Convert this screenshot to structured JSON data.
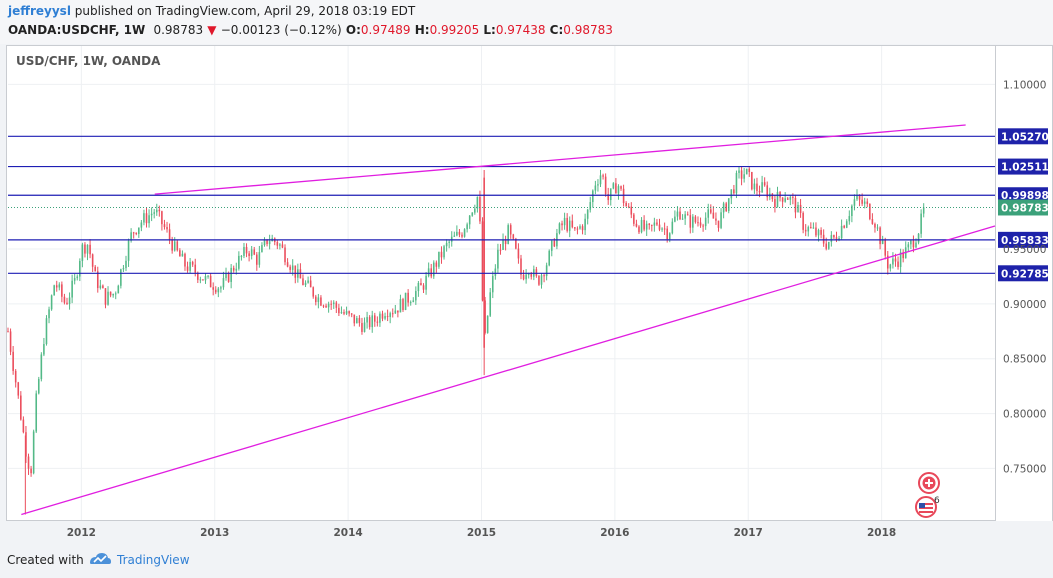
{
  "header": {
    "author": "jeffreyysl",
    "published_text": "published on TradingView.com, April 29, 2018 03:19 EDT",
    "symbol": "OANDA:USDCHF, 1W",
    "last": "0.98783",
    "change_arrow": "▼",
    "change": "−0.00123 (−0.12%)",
    "open_label": "O:",
    "open": "0.97489",
    "high_label": "H:",
    "high": "0.99205",
    "low_label": "L:",
    "low": "0.97438",
    "close_label": "C:",
    "close": "0.98783"
  },
  "footer": {
    "created_with": "Created with",
    "brand": "TradingView"
  },
  "chart_data": {
    "type": "candlestick",
    "title": "USD/CHF, 1W, OANDA",
    "colors": {
      "up": "#53b987",
      "down": "#eb4d5c",
      "level_line": "#1e1eb4",
      "trend_line": "#e01ee0",
      "current_line": "#3ba17a"
    },
    "xlim": [
      2011.45,
      2018.85
    ],
    "ylim": [
      0.703,
      1.135
    ],
    "x_ticks": [
      {
        "x": 2012,
        "label": "2012"
      },
      {
        "x": 2013,
        "label": "2013"
      },
      {
        "x": 2014,
        "label": "2014"
      },
      {
        "x": 2015,
        "label": "2015"
      },
      {
        "x": 2016,
        "label": "2016"
      },
      {
        "x": 2017,
        "label": "2017"
      },
      {
        "x": 2018,
        "label": "2018"
      }
    ],
    "y_ticks": [
      {
        "y": 0.75,
        "label": "0.75000"
      },
      {
        "y": 0.8,
        "label": "0.80000"
      },
      {
        "y": 0.85,
        "label": "0.85000"
      },
      {
        "y": 0.9,
        "label": "0.90000"
      },
      {
        "y": 0.95,
        "label": "0.95000"
      },
      {
        "y": 1.1,
        "label": "1.10000"
      }
    ],
    "levels": [
      {
        "value": 1.0527,
        "label": "1.05270"
      },
      {
        "value": 1.02511,
        "label": "1.02511"
      },
      {
        "value": 0.99898,
        "label": "0.99898"
      },
      {
        "value": 0.95833,
        "label": "0.95833"
      },
      {
        "value": 0.92785,
        "label": "0.92785"
      }
    ],
    "current": {
      "value": 0.98783,
      "label": "0.98783"
    },
    "trendlines": [
      {
        "x1": 2012.55,
        "y1": 1.0,
        "x2": 2018.63,
        "y2": 1.063
      },
      {
        "x1": 2011.55,
        "y1": 0.708,
        "x2": 2018.85,
        "y2": 0.971
      }
    ],
    "anchors": [
      [
        2011.45,
        0.875
      ],
      [
        2011.52,
        0.82
      ],
      [
        2011.58,
        0.77
      ],
      [
        2011.62,
        0.745
      ],
      [
        2011.66,
        0.81
      ],
      [
        2011.72,
        0.87
      ],
      [
        2011.8,
        0.92
      ],
      [
        2011.88,
        0.9
      ],
      [
        2011.95,
        0.92
      ],
      [
        2012.0,
        0.95
      ],
      [
        2012.05,
        0.955
      ],
      [
        2012.1,
        0.925
      ],
      [
        2012.18,
        0.905
      ],
      [
        2012.25,
        0.91
      ],
      [
        2012.32,
        0.94
      ],
      [
        2012.38,
        0.965
      ],
      [
        2012.45,
        0.975
      ],
      [
        2012.55,
        0.985
      ],
      [
        2012.62,
        0.97
      ],
      [
        2012.7,
        0.95
      ],
      [
        2012.78,
        0.935
      ],
      [
        2012.85,
        0.93
      ],
      [
        2012.95,
        0.92
      ],
      [
        2013.05,
        0.915
      ],
      [
        2013.15,
        0.935
      ],
      [
        2013.25,
        0.95
      ],
      [
        2013.32,
        0.94
      ],
      [
        2013.4,
        0.96
      ],
      [
        2013.48,
        0.955
      ],
      [
        2013.55,
        0.94
      ],
      [
        2013.62,
        0.925
      ],
      [
        2013.7,
        0.915
      ],
      [
        2013.78,
        0.905
      ],
      [
        2013.88,
        0.9
      ],
      [
        2013.98,
        0.89
      ],
      [
        2014.05,
        0.885
      ],
      [
        2014.12,
        0.88
      ],
      [
        2014.2,
        0.885
      ],
      [
        2014.28,
        0.895
      ],
      [
        2014.35,
        0.895
      ],
      [
        2014.45,
        0.905
      ],
      [
        2014.55,
        0.915
      ],
      [
        2014.65,
        0.935
      ],
      [
        2014.75,
        0.955
      ],
      [
        2014.85,
        0.965
      ],
      [
        2014.92,
        0.985
      ],
      [
        2014.98,
        1.0
      ],
      [
        2015.02,
        0.86
      ],
      [
        2015.06,
        0.905
      ],
      [
        2015.12,
        0.945
      ],
      [
        2015.2,
        0.965
      ],
      [
        2015.25,
        0.95
      ],
      [
        2015.3,
        0.925
      ],
      [
        2015.35,
        0.935
      ],
      [
        2015.42,
        0.92
      ],
      [
        2015.5,
        0.94
      ],
      [
        2015.55,
        0.96
      ],
      [
        2015.62,
        0.975
      ],
      [
        2015.7,
        0.965
      ],
      [
        2015.78,
        0.975
      ],
      [
        2015.85,
        1.01
      ],
      [
        2015.9,
        1.02
      ],
      [
        2015.95,
        0.995
      ],
      [
        2016.02,
        1.01
      ],
      [
        2016.08,
        0.99
      ],
      [
        2016.15,
        0.975
      ],
      [
        2016.25,
        0.965
      ],
      [
        2016.32,
        0.975
      ],
      [
        2016.4,
        0.965
      ],
      [
        2016.48,
        0.985
      ],
      [
        2016.55,
        0.975
      ],
      [
        2016.62,
        0.975
      ],
      [
        2016.7,
        0.98
      ],
      [
        2016.78,
        0.975
      ],
      [
        2016.85,
        0.995
      ],
      [
        2016.92,
        1.015
      ],
      [
        2016.98,
        1.02
      ],
      [
        2017.05,
        1.005
      ],
      [
        2017.12,
        1.005
      ],
      [
        2017.2,
        0.995
      ],
      [
        2017.28,
        1.0
      ],
      [
        2017.35,
        0.99
      ],
      [
        2017.42,
        0.97
      ],
      [
        2017.5,
        0.965
      ],
      [
        2017.58,
        0.955
      ],
      [
        2017.65,
        0.96
      ],
      [
        2017.72,
        0.975
      ],
      [
        2017.8,
        0.995
      ],
      [
        2017.88,
        0.99
      ],
      [
        2017.95,
        0.975
      ],
      [
        2018.0,
        0.955
      ],
      [
        2018.05,
        0.935
      ],
      [
        2018.12,
        0.94
      ],
      [
        2018.2,
        0.95
      ],
      [
        2018.27,
        0.965
      ],
      [
        2018.32,
        0.985
      ]
    ]
  }
}
